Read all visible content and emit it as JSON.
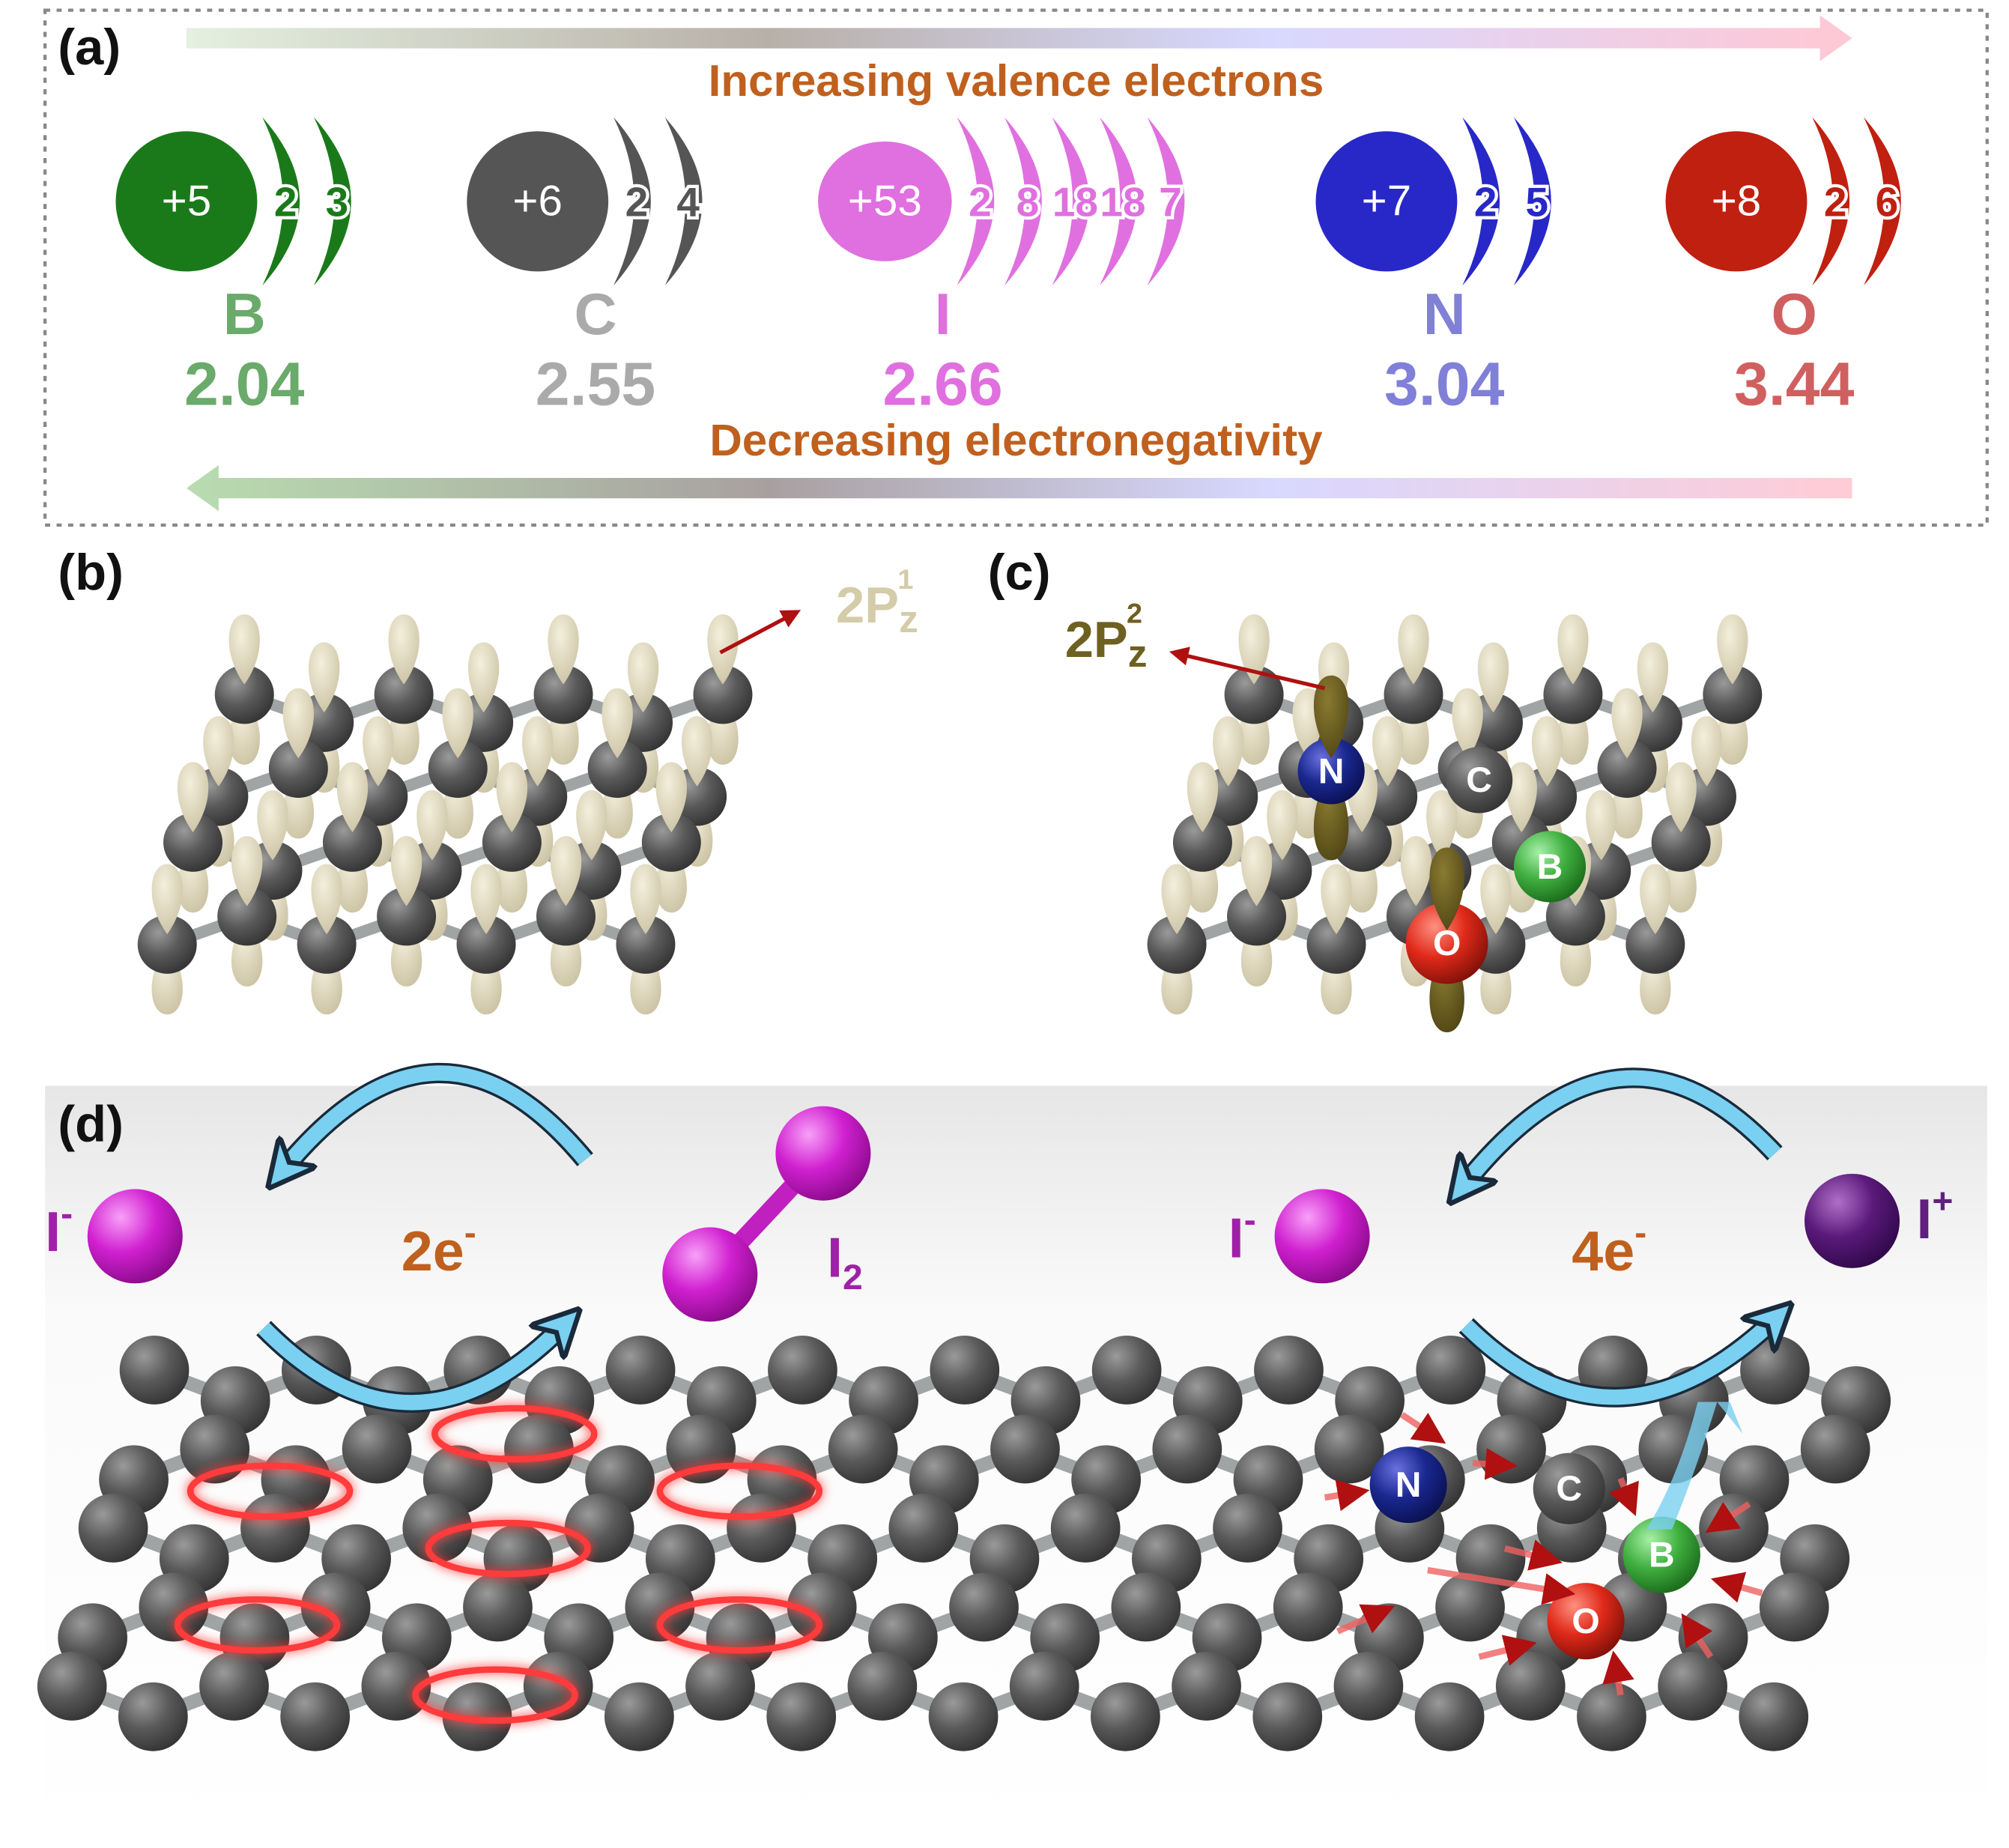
{
  "panel_a": {
    "label": "(a)",
    "top_arrow_label": "Increasing valence electrons",
    "bottom_arrow_label": "Decreasing electronegativity",
    "atoms": [
      {
        "nucleus": "+5",
        "shells": [
          "2",
          "3"
        ],
        "symbol": "B",
        "electronegativity": "2.04"
      },
      {
        "nucleus": "+6",
        "shells": [
          "2",
          "4"
        ],
        "symbol": "C",
        "electronegativity": "2.55"
      },
      {
        "nucleus": "+53",
        "shells": [
          "2",
          "8",
          "18",
          "18",
          "7"
        ],
        "symbol": "I",
        "electronegativity": "2.66"
      },
      {
        "nucleus": "+7",
        "shells": [
          "2",
          "5"
        ],
        "symbol": "N",
        "electronegativity": "3.04"
      },
      {
        "nucleus": "+8",
        "shells": [
          "2",
          "6"
        ],
        "symbol": "O",
        "electronegativity": "3.44"
      }
    ]
  },
  "panel_b": {
    "label": "(b)",
    "orbital": {
      "base": "2P",
      "subscript": "z",
      "superscript": "1"
    }
  },
  "panel_c": {
    "label": "(c)",
    "orbital": {
      "base": "2P",
      "subscript": "z",
      "superscript": "2"
    },
    "atoms": [
      "N",
      "C",
      "B",
      "O"
    ]
  },
  "panel_d": {
    "label": "(d)",
    "left": {
      "ion": {
        "base": "I",
        "charge": "-"
      },
      "transfer": {
        "base": "2e",
        "charge": "-"
      },
      "product": {
        "base": "I",
        "subscript": "2"
      }
    },
    "right": {
      "ion": {
        "base": "I",
        "charge": "-"
      },
      "transfer": {
        "base": "4e",
        "charge": "-"
      },
      "product": {
        "base": "I",
        "charge": "+"
      }
    },
    "atoms": [
      "N",
      "C",
      "B",
      "O"
    ]
  }
}
